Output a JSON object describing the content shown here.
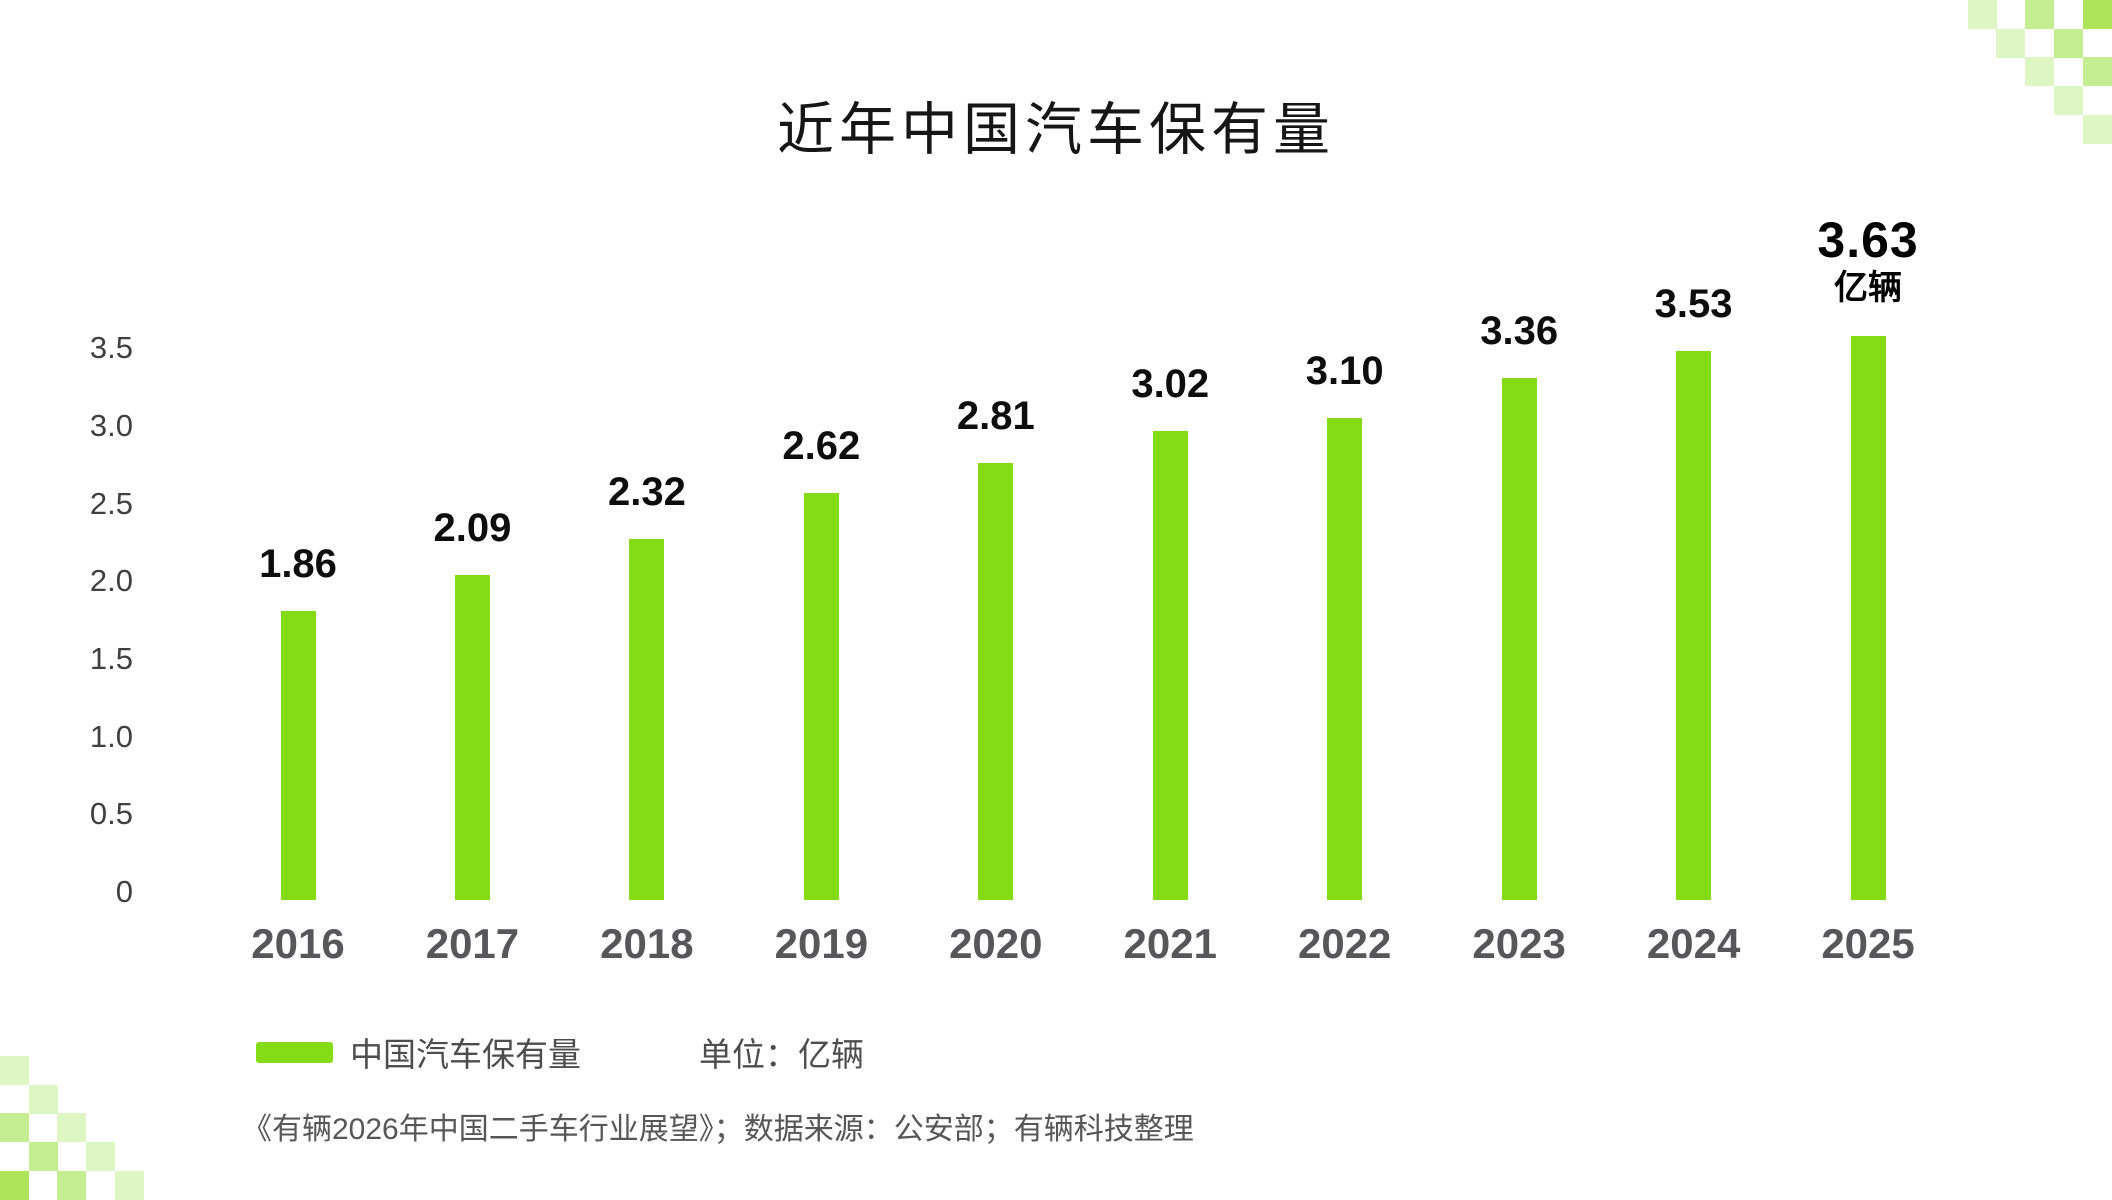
{
  "title": "近年中国汽车保有量",
  "chart_data": {
    "type": "bar",
    "title": "近年中国汽车保有量",
    "categories": [
      "2016",
      "2017",
      "2018",
      "2019",
      "2020",
      "2021",
      "2022",
      "2023",
      "2024",
      "2025"
    ],
    "values": [
      1.86,
      2.09,
      2.32,
      2.62,
      2.81,
      3.02,
      3.1,
      3.36,
      3.53,
      3.63
    ],
    "value_labels": [
      "1.86",
      "2.09",
      "2.32",
      "2.62",
      "2.81",
      "3.02",
      "3.10",
      "3.36",
      "3.53",
      "3.63"
    ],
    "highlight_last": true,
    "unit_suffix_last": "亿辆",
    "series_name": "中国汽车保有量",
    "unit": "亿辆",
    "xlabel": "",
    "ylabel": "",
    "ylim": [
      0,
      3.5
    ],
    "yticks": [
      "3.5",
      "3.0",
      "2.5",
      "2.0",
      "1.5",
      "1.0",
      "0.5",
      "0"
    ],
    "ytick_values": [
      3.5,
      3.0,
      2.5,
      2.0,
      1.5,
      1.0,
      0.5,
      0
    ],
    "grid": false,
    "legend_position": "bottom-left",
    "bar_color": "#84db16"
  },
  "legend": {
    "label": "中国汽车保有量",
    "unit_label": "单位：亿辆",
    "swatch_color": "#84db16"
  },
  "source_line": "《有辆2026年中国二手车行业展望》；数据来源：公安部；有辆科技整理",
  "colors": {
    "bar": "#84db16",
    "value_label": "#0d0d0d",
    "highlight_label": "#000000",
    "year_label": "#57575a",
    "ytick_label": "#404040",
    "legend_text": "#4d4d4d",
    "source_text": "#575757",
    "background": "#ffffff",
    "checker_shades": [
      "#ddf6c3",
      "#c5ee92",
      "#ace55a"
    ]
  }
}
